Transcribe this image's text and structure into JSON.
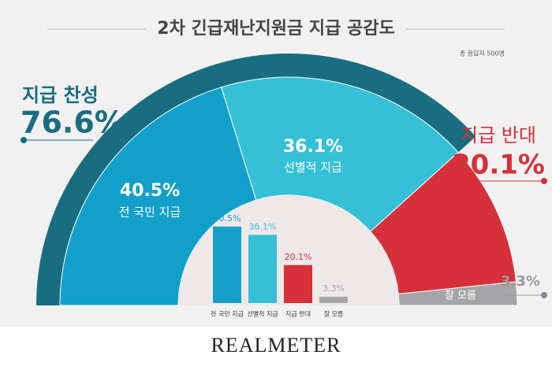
{
  "chart_data": {
    "type": "half-donut",
    "title": "2차 긴급재난지원금 지급 공감도",
    "note": "총 응답자 500명",
    "categories": [
      "전 국민 지급",
      "선별적 지급",
      "지급 반대",
      "잘 모름"
    ],
    "values": [
      40.5,
      36.1,
      20.1,
      3.3
    ],
    "value_labels": [
      "40.5%",
      "36.1%",
      "20.1%",
      "3.3%"
    ],
    "colors": [
      "#12a0cb",
      "#35c0d6",
      "#d6303a",
      "#a5a5a8"
    ],
    "group": {
      "name": "지급 찬성",
      "value": 76.6,
      "value_label": "76.6%",
      "color": "#186d80"
    },
    "footer": "REALMETER"
  }
}
